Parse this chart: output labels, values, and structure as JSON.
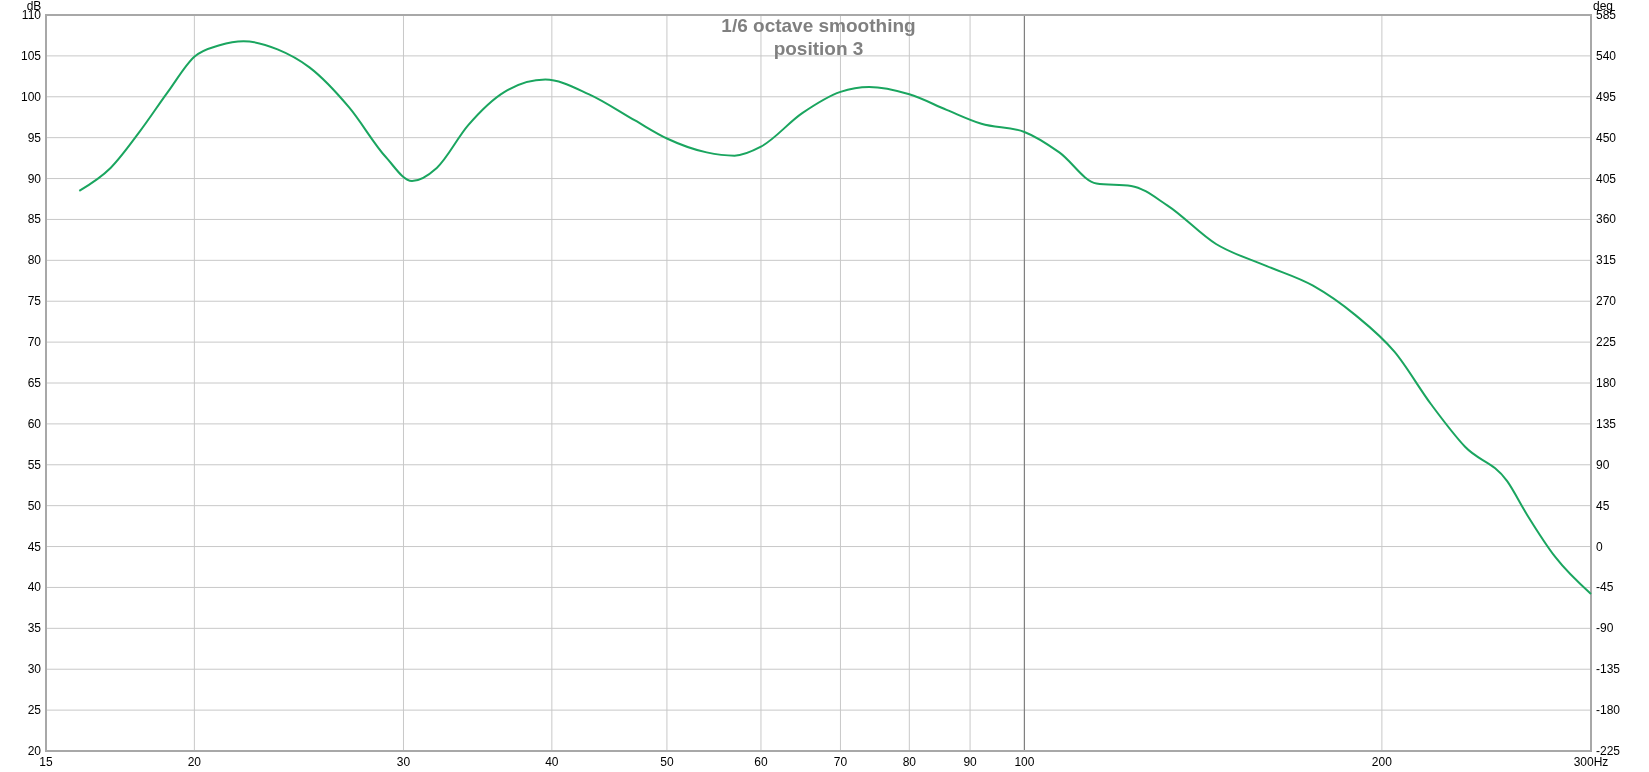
{
  "chart_data": {
    "type": "line",
    "title": "1/6 octave smoothing",
    "subtitle": "position 3",
    "ylabel": "dB",
    "y2label": "deg",
    "x": [
      16,
      17,
      18,
      19,
      20,
      21,
      22,
      23.5,
      25,
      27,
      29,
      30.5,
      32,
      34,
      36.5,
      39.5,
      43,
      47,
      50,
      54,
      57,
      60,
      65,
      70,
      74,
      80,
      86,
      92,
      100,
      107,
      115,
      123,
      132,
      145,
      160,
      175,
      190,
      205,
      220,
      235,
      255,
      265,
      280,
      300
    ],
    "series": [
      {
        "color": "#1aa55f",
        "values": [
          88.5,
          91.3,
          95.8,
          100.6,
          104.9,
          106.3,
          106.8,
          105.8,
          103.6,
          98.7,
          92.6,
          89.7,
          91.3,
          96.5,
          100.6,
          102.1,
          100.3,
          97.1,
          94.9,
          93.2,
          92.8,
          93.9,
          98,
          100.6,
          101.2,
          100.3,
          98.4,
          96.7,
          95.7,
          93.2,
          89.4,
          89.1,
          86.7,
          82,
          79.3,
          76.9,
          73.3,
          68.8,
          62.4,
          57.2,
          53,
          48.9,
          43.7,
          39.2
        ]
      }
    ],
    "log": "x",
    "xlim": [
      15,
      300
    ],
    "xticks": [
      15,
      20,
      30,
      40,
      50,
      60,
      70,
      80,
      90,
      100,
      200,
      {
        "value": 300,
        "label": "300Hz"
      }
    ],
    "ylim": [
      20,
      110
    ],
    "yticks": [
      20,
      25,
      30,
      35,
      40,
      45,
      50,
      55,
      60,
      65,
      70,
      75,
      80,
      85,
      90,
      95,
      100,
      105,
      110
    ],
    "y2lim": [
      -225,
      585
    ],
    "y2ticks": [
      -225,
      -180,
      -135,
      -90,
      -45,
      0,
      45,
      90,
      135,
      180,
      225,
      270,
      315,
      360,
      405,
      450,
      495,
      540,
      585
    ],
    "ref_lines": [
      {
        "axis": "x",
        "value": 100,
        "color": "#808080"
      }
    ],
    "grid": true,
    "line_style": "solid",
    "marker": "none"
  }
}
